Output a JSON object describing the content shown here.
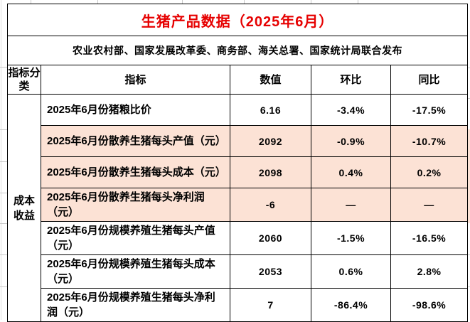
{
  "title": "生猪产品数据（2025年6月）",
  "subtitle": "农业农村部、国家发展改革委、商务部、海关总署、国家统计局联合发布",
  "colors": {
    "title": "#e60000",
    "highlight": "#fce2d5",
    "border": "#000000"
  },
  "table": {
    "headers": {
      "category": "指标分类",
      "indicator": "指标",
      "value": "数值",
      "mom": "环比",
      "yoy": "同比"
    },
    "category_label": "成本收益",
    "rows": [
      {
        "indicator": "2025年6月份猪粮比价",
        "value": "6.16",
        "mom": "-3.4%",
        "yoy": "-17.5%",
        "highlight": false
      },
      {
        "indicator": "2025年6月份散养生猪每头产值（元）",
        "value": "2092",
        "mom": "-0.9%",
        "yoy": "-10.7%",
        "highlight": true
      },
      {
        "indicator": "2025年6月份散养生猪每头成本（元）",
        "value": "2098",
        "mom": "0.4%",
        "yoy": "0.2%",
        "highlight": true
      },
      {
        "indicator": "2025年6月份散养生猪每头净利润（元）",
        "value": "-6",
        "mom": "—",
        "yoy": "—",
        "highlight": true
      },
      {
        "indicator": "2025年6月份规模养殖生猪每头产值（元）",
        "value": "2060",
        "mom": "-1.5%",
        "yoy": "-16.5%",
        "highlight": false
      },
      {
        "indicator": "2025年6月份规模养殖生猪每头成本（元）",
        "value": "2053",
        "mom": "0.6%",
        "yoy": "2.8%",
        "highlight": false
      },
      {
        "indicator": "2025年6月份规模养殖生猪每头净利润（元）",
        "value": "7",
        "mom": "-86.4%",
        "yoy": "-98.6%",
        "highlight": false
      }
    ]
  },
  "chart_data": {
    "type": "table",
    "title": "生猪产品数据（2025年6月）",
    "subtitle": "农业农村部、国家发展改革委、商务部、海关总署、国家统计局联合发布",
    "columns": [
      "指标分类",
      "指标",
      "数值",
      "环比",
      "同比"
    ],
    "rows": [
      [
        "成本收益",
        "2025年6月份猪粮比价",
        6.16,
        "-3.4%",
        "-17.5%"
      ],
      [
        "成本收益",
        "2025年6月份散养生猪每头产值（元）",
        2092,
        "-0.9%",
        "-10.7%"
      ],
      [
        "成本收益",
        "2025年6月份散养生猪每头成本（元）",
        2098,
        "0.4%",
        "0.2%"
      ],
      [
        "成本收益",
        "2025年6月份散养生猪每头净利润（元）",
        -6,
        "—",
        "—"
      ],
      [
        "成本收益",
        "2025年6月份规模养殖生猪每头产值（元）",
        2060,
        "-1.5%",
        "-16.5%"
      ],
      [
        "成本收益",
        "2025年6月份规模养殖生猪每头成本（元）",
        2053,
        "0.6%",
        "2.8%"
      ],
      [
        "成本收益",
        "2025年6月份规模养殖生猪每头净利润（元）",
        7,
        "-86.4%",
        "-98.6%"
      ]
    ],
    "notes": "highlighted_rows(peach #fce2d5): indices 1,2,3"
  }
}
